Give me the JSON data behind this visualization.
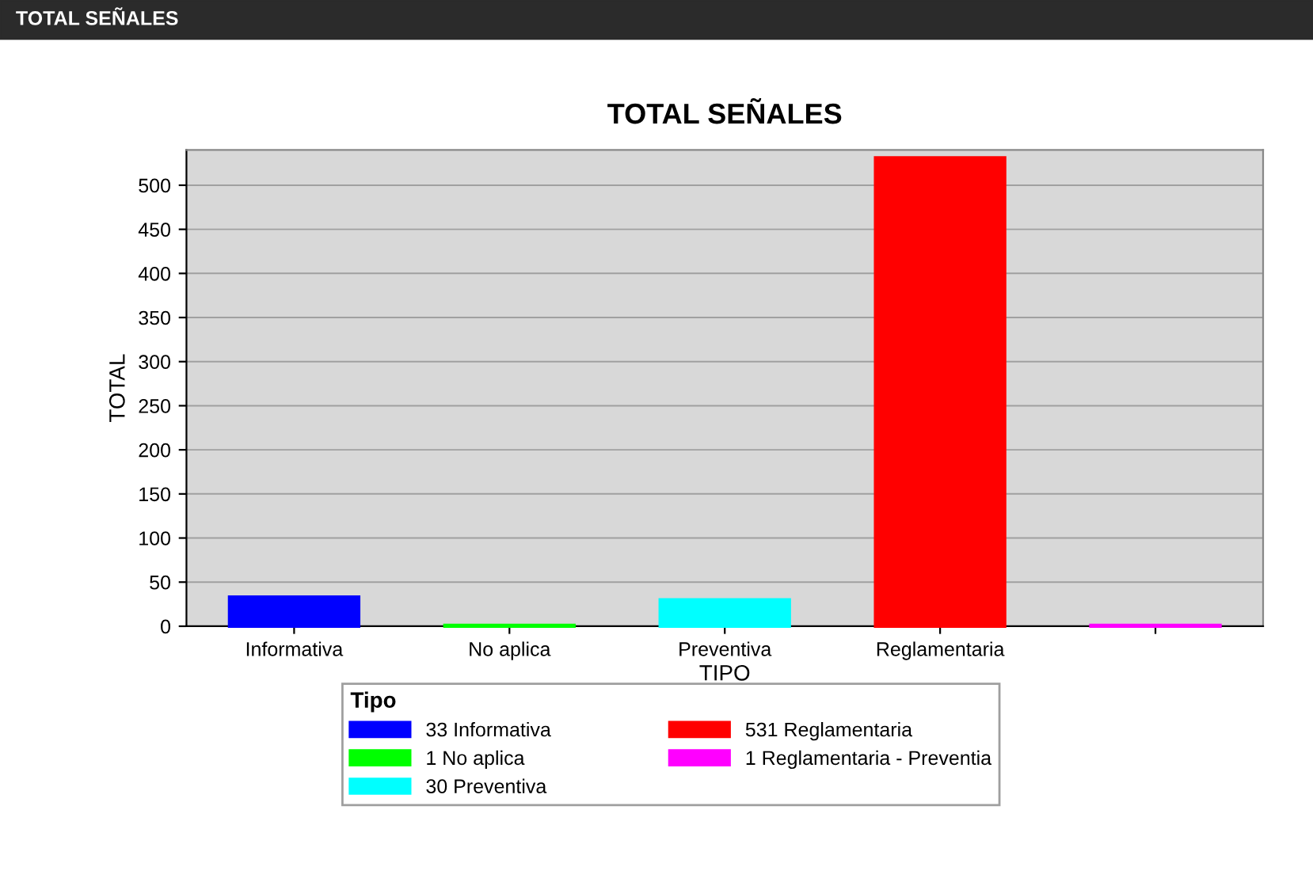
{
  "chart_data": {
    "type": "bar",
    "title": "TOTAL SEÑALES",
    "xlabel": "TIPO",
    "ylabel": "TOTAL",
    "legend_title": "Tipo",
    "annotations": [
      "TOTAL SEÑALES"
    ],
    "categories": [
      "Informativa",
      "No aplica",
      "Preventiva",
      "Reglamentaria",
      null
    ],
    "series": [
      {
        "name": "33 Informativa",
        "color": "#0000ff",
        "values": [
          33,
          null,
          null,
          null,
          null
        ]
      },
      {
        "name": "1 No aplica",
        "color": "#00ff00",
        "values": [
          null,
          1,
          null,
          null,
          null
        ]
      },
      {
        "name": "30 Preventiva",
        "color": "#00ffff",
        "values": [
          null,
          null,
          30,
          null,
          null
        ]
      },
      {
        "name": "531 Reglamentaria",
        "color": "#ff0000",
        "values": [
          null,
          null,
          null,
          531,
          null
        ]
      },
      {
        "name": "1 Reglamentaria - Preventia",
        "color": "#ff00ff",
        "values": [
          null,
          null,
          null,
          null,
          1
        ]
      }
    ],
    "ylim": [
      0,
      540
    ],
    "yticks": [
      0,
      50,
      100,
      150,
      200,
      250,
      300,
      350,
      400,
      450,
      500
    ],
    "grid": "y",
    "legend": "bottom"
  }
}
